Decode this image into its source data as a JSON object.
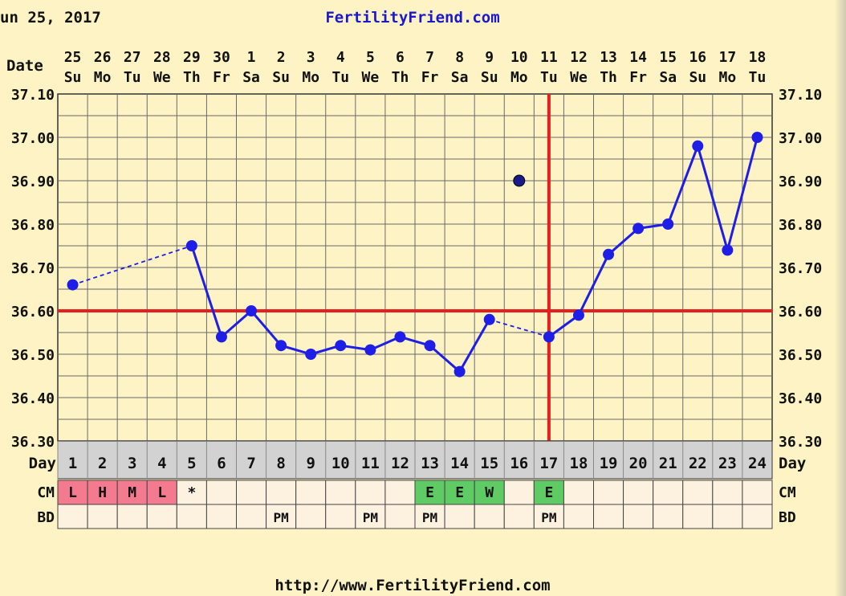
{
  "header": {
    "date_text": "un 25, 2017",
    "site": "FertilityFriend.com",
    "footer_url": "http://www.FertilityFriend.com"
  },
  "labels": {
    "date_row": "Date",
    "day_row": "Day",
    "cm_row": "CM",
    "bd_row": "BD"
  },
  "colors": {
    "background": "#fdf3c4",
    "grid": "#6a6a6a",
    "line": "#1e1ee6",
    "coverline": "#e61e1e",
    "day_row_bg": "#d2d2d2",
    "cm_pink": "#f47a8f",
    "cm_green": "#5ecb64",
    "cell_bg": "#fdf1e0"
  },
  "chart_data": {
    "type": "line",
    "title": "",
    "dates": [
      "25",
      "26",
      "27",
      "28",
      "29",
      "30",
      "1",
      "2",
      "3",
      "4",
      "5",
      "6",
      "7",
      "8",
      "9",
      "10",
      "11",
      "12",
      "13",
      "14",
      "15",
      "16",
      "17",
      "18"
    ],
    "weekdays": [
      "Su",
      "Mo",
      "Tu",
      "We",
      "Th",
      "Fr",
      "Sa",
      "Su",
      "Mo",
      "Tu",
      "We",
      "Th",
      "Fr",
      "Sa",
      "Su",
      "Mo",
      "Tu",
      "We",
      "Th",
      "Fr",
      "Sa",
      "Su",
      "Mo",
      "Tu"
    ],
    "cycle_days": [
      "1",
      "2",
      "3",
      "4",
      "5",
      "6",
      "7",
      "8",
      "9",
      "10",
      "11",
      "12",
      "13",
      "14",
      "15",
      "16",
      "17",
      "18",
      "19",
      "20",
      "21",
      "22",
      "23",
      "24"
    ],
    "yticks": [
      "37.10",
      "37.00",
      "36.90",
      "36.80",
      "36.70",
      "36.60",
      "36.50",
      "36.40",
      "36.30"
    ],
    "yticks_left": [
      "37.10",
      "37.00",
      "36.90",
      "36.80",
      "36.70",
      "36.60",
      "36.50",
      "36.40",
      "36.30"
    ],
    "ylim": [
      36.3,
      37.1
    ],
    "temps": [
      36.66,
      null,
      null,
      null,
      36.75,
      36.54,
      36.6,
      36.52,
      36.5,
      36.52,
      36.51,
      36.54,
      36.52,
      36.46,
      36.58,
      36.9,
      36.54,
      36.59,
      36.73,
      36.79,
      36.8,
      36.98,
      36.74,
      37.0
    ],
    "discarded_days": [
      16
    ],
    "coverline": 36.6,
    "ovulation_day": 17,
    "cm": [
      "L",
      "H",
      "M",
      "L",
      "*",
      "",
      "",
      "",
      "",
      "",
      "",
      "",
      "E",
      "E",
      "W",
      "",
      "E",
      "",
      "",
      "",
      "",
      "",
      "",
      ""
    ],
    "cm_colors": [
      "pink",
      "pink",
      "pink",
      "pink",
      "none",
      "none",
      "none",
      "none",
      "none",
      "none",
      "none",
      "none",
      "green",
      "green",
      "green",
      "none",
      "green",
      "none",
      "none",
      "none",
      "none",
      "none",
      "none",
      "none"
    ],
    "bd": [
      "",
      "",
      "",
      "",
      "",
      "",
      "",
      "PM",
      "",
      "",
      "PM",
      "",
      "PM",
      "",
      "",
      "",
      "PM",
      "",
      "",
      "",
      "",
      "",
      "",
      ""
    ]
  }
}
